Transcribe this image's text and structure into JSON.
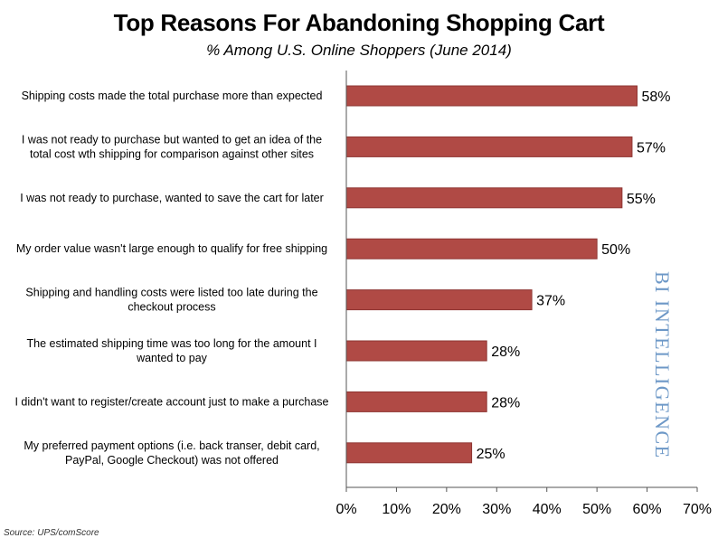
{
  "title": "Top Reasons For Abandoning Shopping Cart",
  "subtitle": "% Among U.S. Online Shoppers (June 2014)",
  "source": "Source: UPS/comScore",
  "watermark": "BI INTELLIGENCE",
  "colors": {
    "bar": "#b04a45",
    "bar_edge": "#8e3532",
    "watermark": "#6d98c7"
  },
  "chart_data": {
    "type": "bar",
    "orientation": "horizontal",
    "title": "Top Reasons For Abandoning Shopping Cart",
    "subtitle": "% Among U.S. Online Shoppers (June 2014)",
    "categories": [
      [
        "Shipping costs made the total purchase more than expected"
      ],
      [
        "I was not ready to purchase but wanted to get an idea of the",
        "total cost wth shipping for comparison against other sites"
      ],
      [
        "I was not ready to purchase, wanted to save the cart for later"
      ],
      [
        "My order value wasn't large enough to qualify for free shipping"
      ],
      [
        "Shipping and handling costs were listed too late during the",
        "checkout process"
      ],
      [
        "The estimated shipping time was too long for the amount I",
        "wanted to pay"
      ],
      [
        "I didn't want to register/create account just to make a purchase"
      ],
      [
        "My preferred payment options (i.e. back transer, debit card,",
        "PayPal, Google Checkout) was not offered"
      ]
    ],
    "values": [
      58,
      57,
      55,
      50,
      37,
      28,
      28,
      25
    ],
    "value_labels": [
      "58%",
      "57%",
      "55%",
      "50%",
      "37%",
      "28%",
      "28%",
      "25%"
    ],
    "xlim": [
      0,
      70
    ],
    "xticks": [
      0,
      10,
      20,
      30,
      40,
      50,
      60,
      70
    ],
    "xtick_labels": [
      "0%",
      "10%",
      "20%",
      "30%",
      "40%",
      "50%",
      "60%",
      "70%"
    ],
    "grid": false,
    "legend": "none"
  }
}
